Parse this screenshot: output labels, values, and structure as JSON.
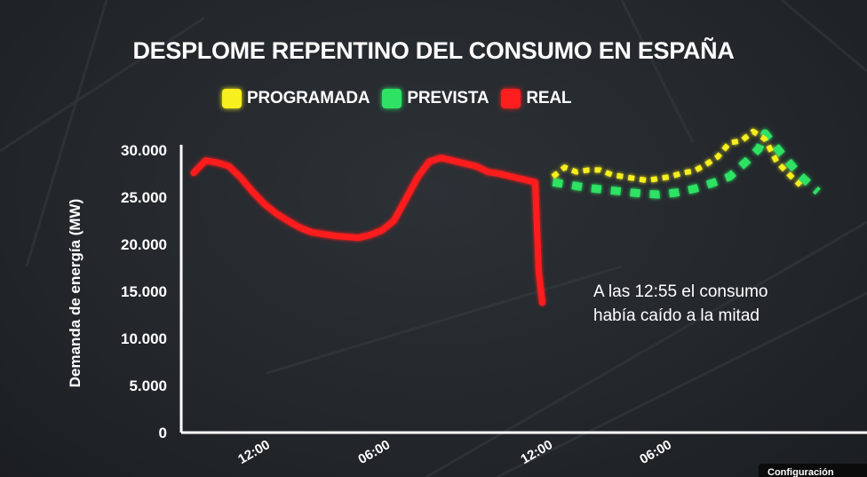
{
  "chart_data": {
    "type": "line",
    "title": "DESPLOME REPENTINO DEL CONSUMO EN ESPAÑA",
    "ylabel": "Demanda de energía (MW)",
    "xlabel": "",
    "ylim": [
      0,
      32000
    ],
    "xlim": [
      0,
      54
    ],
    "y_ticks": [
      {
        "value": 0,
        "label": "0"
      },
      {
        "value": 5000,
        "label": "5.000"
      },
      {
        "value": 10000,
        "label": "10.000"
      },
      {
        "value": 15000,
        "label": "15.000"
      },
      {
        "value": 20000,
        "label": "20.000"
      },
      {
        "value": 25000,
        "label": "25.000"
      },
      {
        "value": 30000,
        "label": "30.000"
      }
    ],
    "x_ticks": [
      {
        "value": 5.3,
        "label": "12:00"
      },
      {
        "value": 15.5,
        "label": "06:00"
      },
      {
        "value": 29.3,
        "label": "12:00"
      },
      {
        "value": 39.4,
        "label": "06:00"
      }
    ],
    "legend_position": "top",
    "grid": false,
    "series": [
      {
        "name": "PROGRAMADA",
        "color": "#f7ef1e",
        "style": "dotted",
        "x": [
          30.5,
          31.5,
          32.5,
          33.5,
          34.5,
          35.5,
          36.5,
          37.5,
          38.5,
          39.5,
          40.5,
          41.5,
          42.5,
          43.5,
          44.5,
          45.5,
          46.5,
          47.5,
          48.5,
          49.5,
          50.5,
          51.5
        ],
        "y": [
          27200,
          28200,
          27700,
          27900,
          27900,
          27400,
          27200,
          27000,
          26800,
          27000,
          27200,
          27600,
          27800,
          28500,
          29300,
          30800,
          31000,
          32000,
          31200,
          28800,
          27500,
          26300
        ]
      },
      {
        "name": "PREVISTA",
        "color": "#2fe264",
        "style": "dotted",
        "x": [
          30.5,
          32,
          33.5,
          35,
          36.5,
          38,
          39.5,
          41,
          42.5,
          44,
          45.5,
          47,
          48,
          48.5,
          50,
          51.5,
          53
        ],
        "y": [
          26600,
          26300,
          26000,
          25800,
          25600,
          25400,
          25300,
          25500,
          25900,
          26500,
          27200,
          28900,
          30200,
          31800,
          29500,
          27300,
          25600
        ]
      },
      {
        "name": "REAL",
        "color": "#ff1e1e",
        "style": "solid",
        "x": [
          0,
          1,
          2,
          3,
          4,
          5,
          6,
          7,
          8,
          9,
          10,
          11,
          12,
          13,
          14,
          15,
          16,
          17,
          18,
          19,
          20,
          21,
          22,
          23,
          24,
          25,
          26,
          27,
          28,
          29,
          29.3,
          29.6
        ],
        "y": [
          27600,
          28900,
          28700,
          28300,
          27100,
          25600,
          24300,
          23300,
          22500,
          21800,
          21300,
          21100,
          20900,
          20800,
          20700,
          21000,
          21500,
          22500,
          24800,
          27100,
          28800,
          29200,
          28900,
          28600,
          28300,
          27700,
          27500,
          27200,
          26900,
          26600,
          17000,
          13800
        ]
      }
    ]
  },
  "annotation": {
    "line1": "A las 12:55 el consumo",
    "line2": "había caído a la mitad"
  },
  "config_button": {
    "label": "Configuración"
  }
}
